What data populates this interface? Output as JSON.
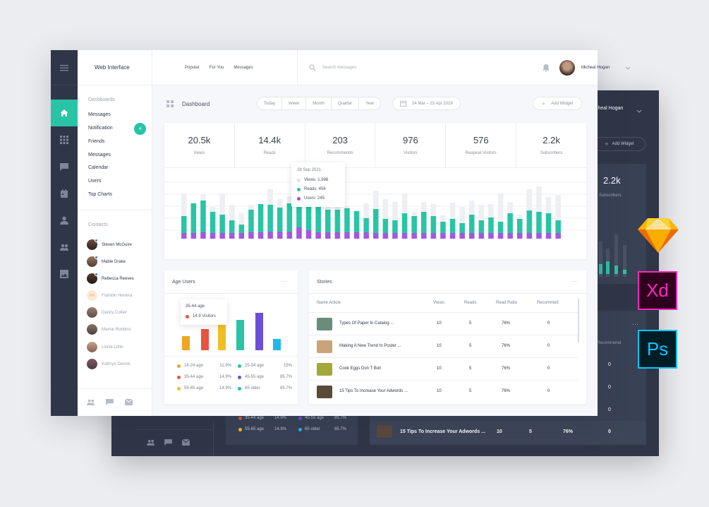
{
  "dark_window": {
    "user_name": "cheal Hogan",
    "add_widget_label": "Add Widget",
    "stat_value": "2.2k",
    "stat_label": "Subscribers",
    "recommend_header": "Recommend",
    "recommend_values": [
      "0",
      "0",
      "0",
      "0"
    ],
    "legend": [
      {
        "label": "35-44 age",
        "value": "14.9%",
        "color": "#e8543f"
      },
      {
        "label": "45-55 age",
        "value": "85.7%",
        "color": "#6c4fd6"
      },
      {
        "label": "55-65 age",
        "value": "14.9%",
        "color": "#f0c023"
      },
      {
        "label": "65 older",
        "value": "85.7%",
        "color": "#20b8e6"
      }
    ],
    "story": {
      "title": "15 Tips To Increase Your Adwords ...",
      "views": "10",
      "reads": "5",
      "ratio": "76%",
      "recommend": "0"
    }
  },
  "brand": {
    "title": "Web Interface"
  },
  "nav_tabs": [
    "Popular",
    "For You",
    "Messages"
  ],
  "search": {
    "placeholder": "Search messages"
  },
  "user": {
    "name": "Micheal Hogan"
  },
  "sidebar": {
    "section_label": "Dashboards",
    "items": [
      {
        "label": "Messages"
      },
      {
        "label": "Notification",
        "badge": "4"
      },
      {
        "label": "Friends"
      },
      {
        "label": "Messages"
      },
      {
        "label": "Calendar"
      },
      {
        "label": "Users"
      },
      {
        "label": "Top Charts"
      }
    ],
    "contacts_label": "Contacts",
    "contacts": [
      {
        "name": "Steven McGuire",
        "online": true
      },
      {
        "name": "Mable Drake",
        "online": true
      },
      {
        "name": "Rebecca Reeves",
        "online": true
      },
      {
        "name": "Franklin Herrera",
        "initials": "FH",
        "muted": true
      },
      {
        "name": "Danny Collier",
        "muted": true
      },
      {
        "name": "Mamie Robbins",
        "muted": true
      },
      {
        "name": "Linnie Little",
        "muted": true
      },
      {
        "name": "Kathryn Dennis",
        "muted": true
      }
    ]
  },
  "dashboard": {
    "title": "Dashboard",
    "range_tabs": [
      "Today",
      "Week",
      "Month",
      "Quarter",
      "Year"
    ],
    "date_range": "24 Mar – 23 Apr 2019",
    "add_widget_label": "Add Widget"
  },
  "stats": [
    {
      "value": "20.5k",
      "label": "Views"
    },
    {
      "value": "14.4k",
      "label": "Reads"
    },
    {
      "value": "203",
      "label": "Recommends"
    },
    {
      "value": "976",
      "label": "Visitors"
    },
    {
      "value": "576",
      "label": "Reapeat Visitors"
    },
    {
      "value": "2.2k",
      "label": "Subscribers"
    }
  ],
  "tooltip": {
    "date": "28 Sep 2021",
    "rows": [
      {
        "label": "Views: 1,988",
        "color": "#e3e5ea"
      },
      {
        "label": "Reads: 456",
        "color": "#28c4a5"
      },
      {
        "label": "Users: 245",
        "color": "#9a4fd6"
      }
    ]
  },
  "chart_data": [
    {
      "type": "bar",
      "stacked": true,
      "series": [
        {
          "name": "Views",
          "color": "#eeeff2",
          "values": [
            64,
            51,
            63,
            45,
            64,
            48,
            36,
            48,
            48,
            70,
            56,
            60,
            54,
            51,
            56,
            70,
            51,
            46,
            38,
            50,
            68,
            56,
            52,
            64,
            37,
            52,
            49,
            33,
            51,
            45,
            54,
            48,
            49,
            64,
            52,
            34,
            70,
            74,
            59,
            62
          ]
        },
        {
          "name": "Reads",
          "color": "#28c4a5",
          "values": [
            24,
            42,
            45,
            30,
            26,
            18,
            12,
            32,
            40,
            38,
            34,
            40,
            44,
            38,
            36,
            32,
            32,
            34,
            30,
            20,
            34,
            20,
            18,
            28,
            24,
            30,
            24,
            16,
            20,
            14,
            26,
            18,
            22,
            16,
            28,
            20,
            32,
            30,
            28,
            18
          ]
        },
        {
          "name": "Users",
          "color": "#a259e0",
          "values": [
            8,
            8,
            9,
            8,
            8,
            8,
            8,
            9,
            9,
            10,
            10,
            10,
            16,
            12,
            9,
            9,
            9,
            9,
            9,
            9,
            8,
            8,
            8,
            8,
            8,
            8,
            8,
            8,
            8,
            8,
            8,
            8,
            8,
            8,
            8,
            8,
            8,
            8,
            8,
            8
          ]
        }
      ]
    },
    {
      "type": "bar",
      "title": "Age Users",
      "categories": [
        "18-24 age",
        "35-44 age",
        "55-65 age",
        "25-34 age",
        "45-55 age",
        "65 older"
      ],
      "values": [
        20,
        30,
        37,
        43,
        53,
        16
      ],
      "colors": [
        "#f0a623",
        "#e8543f",
        "#f0c023",
        "#28c4a5",
        "#6c4fd6",
        "#20b8e6"
      ]
    }
  ],
  "age_users": {
    "title": "Age Users",
    "tooltip_title": "35-44 age",
    "tooltip_value": "14.9 Visitors",
    "legend": [
      {
        "label": "18-24 age",
        "value": "11.9%",
        "color": "#f0a623"
      },
      {
        "label": "25-34 age",
        "value": "15%",
        "color": "#28c4a5"
      },
      {
        "label": "35-44 age",
        "value": "14.9%",
        "color": "#e8543f"
      },
      {
        "label": "45-55 age",
        "value": "85.7%",
        "color": "#6c4fd6"
      },
      {
        "label": "55-65 age",
        "value": "14.9%",
        "color": "#f0c023"
      },
      {
        "label": "65 older",
        "value": "85.7%",
        "color": "#20b8e6"
      }
    ]
  },
  "stories": {
    "title": "Stories",
    "headers": [
      "Name Article",
      "Views",
      "Reads",
      "Read Ratio",
      "Recommed"
    ],
    "rows": [
      {
        "title": "Types Of Paper In Catalog ...",
        "views": "10",
        "reads": "5",
        "ratio": "76%",
        "recommend": "0",
        "thumb": "#6a8c7a"
      },
      {
        "title": "Making A New Trend In Poster ...",
        "views": "10",
        "reads": "5",
        "ratio": "76%",
        "recommend": "0",
        "thumb": "#c9a37a"
      },
      {
        "title": "Cook Eggs Don T Boil",
        "views": "10",
        "reads": "5",
        "ratio": "76%",
        "recommend": "0",
        "thumb": "#a3a83a"
      },
      {
        "title": "15 Tips To Increase Your Adwords ...",
        "views": "10",
        "reads": "5",
        "ratio": "76%",
        "recommend": "0",
        "thumb": "#5a4a3a"
      }
    ]
  },
  "app_icons": [
    {
      "name": "sketch-icon"
    },
    {
      "name": "xd-icon",
      "label": "Xd"
    },
    {
      "name": "ps-icon",
      "label": "Ps"
    }
  ]
}
